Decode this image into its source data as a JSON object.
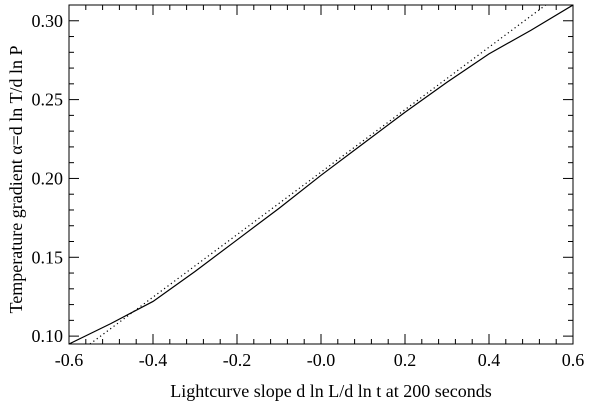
{
  "chart_data": {
    "type": "line",
    "title": "",
    "xlabel": "Lightcurve slope d ln L/d ln t at 200 seconds",
    "ylabel": "Temperature gradient α=d ln T/d ln P",
    "xlim": [
      -0.6,
      0.6
    ],
    "ylim": [
      0.095,
      0.31
    ],
    "grid": false,
    "legend": "none",
    "x_ticks": [
      -0.6,
      -0.4,
      -0.2,
      0.0,
      0.2,
      0.4,
      0.6
    ],
    "x_tick_labels": [
      "-0.6",
      "-0.4",
      "-0.2",
      "-0.0",
      "0.2",
      "0.4",
      "0.6"
    ],
    "y_ticks": [
      0.1,
      0.15,
      0.2,
      0.25,
      0.3
    ],
    "y_tick_labels": [
      "0.10",
      "0.15",
      "0.20",
      "0.25",
      "0.30"
    ],
    "series": [
      {
        "style": "solid",
        "color": "#000000",
        "x": [
          -0.6,
          -0.5,
          -0.4,
          -0.3,
          -0.2,
          -0.1,
          0.0,
          0.1,
          0.2,
          0.3,
          0.4,
          0.5,
          0.6
        ],
        "y": [
          0.095,
          0.108,
          0.122,
          0.141,
          0.161,
          0.181,
          0.202,
          0.222,
          0.242,
          0.261,
          0.279,
          0.294,
          0.31
        ]
      },
      {
        "style": "dotted",
        "color": "#000000",
        "x": [
          -0.55,
          0.535
        ],
        "y": [
          0.095,
          0.31
        ]
      }
    ]
  }
}
